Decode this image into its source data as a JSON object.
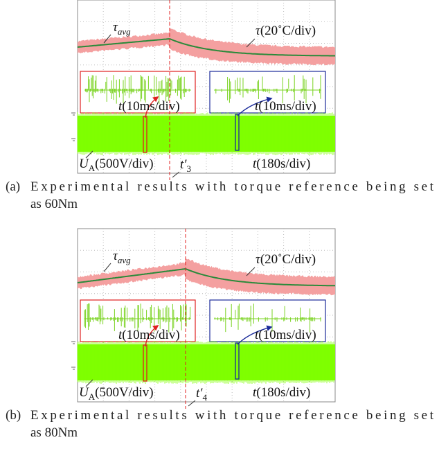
{
  "panels": [
    {
      "tau_avg": {
        "symbol": "τ",
        "subscript": "avg"
      },
      "temp_scale": {
        "symbol": "τ",
        "unit": "(20˚C/div)"
      },
      "zoom_left": {
        "symbol": "t",
        "unit": "(10ms/div)"
      },
      "zoom_right": {
        "symbol": "t",
        "unit": "(10ms/div)"
      },
      "voltage_scale": {
        "symbol": "U",
        "subscript": "A",
        "unit": "(500V/div)"
      },
      "time_marker": {
        "symbol": "t′",
        "subscript": "3"
      },
      "time_scale": {
        "symbol": "t",
        "unit": "(180s/div)"
      },
      "caption": {
        "label": "(a)",
        "line1": "Experimental results with torque reference being set",
        "line2": "as 60Nm"
      }
    },
    {
      "tau_avg": {
        "symbol": "τ",
        "subscript": "avg"
      },
      "temp_scale": {
        "symbol": "τ",
        "unit": "(20˚C/div)"
      },
      "zoom_left": {
        "symbol": "t",
        "unit": "(10ms/div)"
      },
      "zoom_right": {
        "symbol": "t",
        "unit": "(10ms/div)"
      },
      "voltage_scale": {
        "symbol": "U",
        "subscript": "A",
        "unit": "(500V/div)"
      },
      "time_marker": {
        "symbol": "t′",
        "subscript": "4"
      },
      "time_scale": {
        "symbol": "t",
        "unit": "(180s/div)"
      },
      "caption": {
        "label": "(b)",
        "line1": "Experimental results with torque reference being set",
        "line2": "as 80Nm"
      }
    }
  ]
}
